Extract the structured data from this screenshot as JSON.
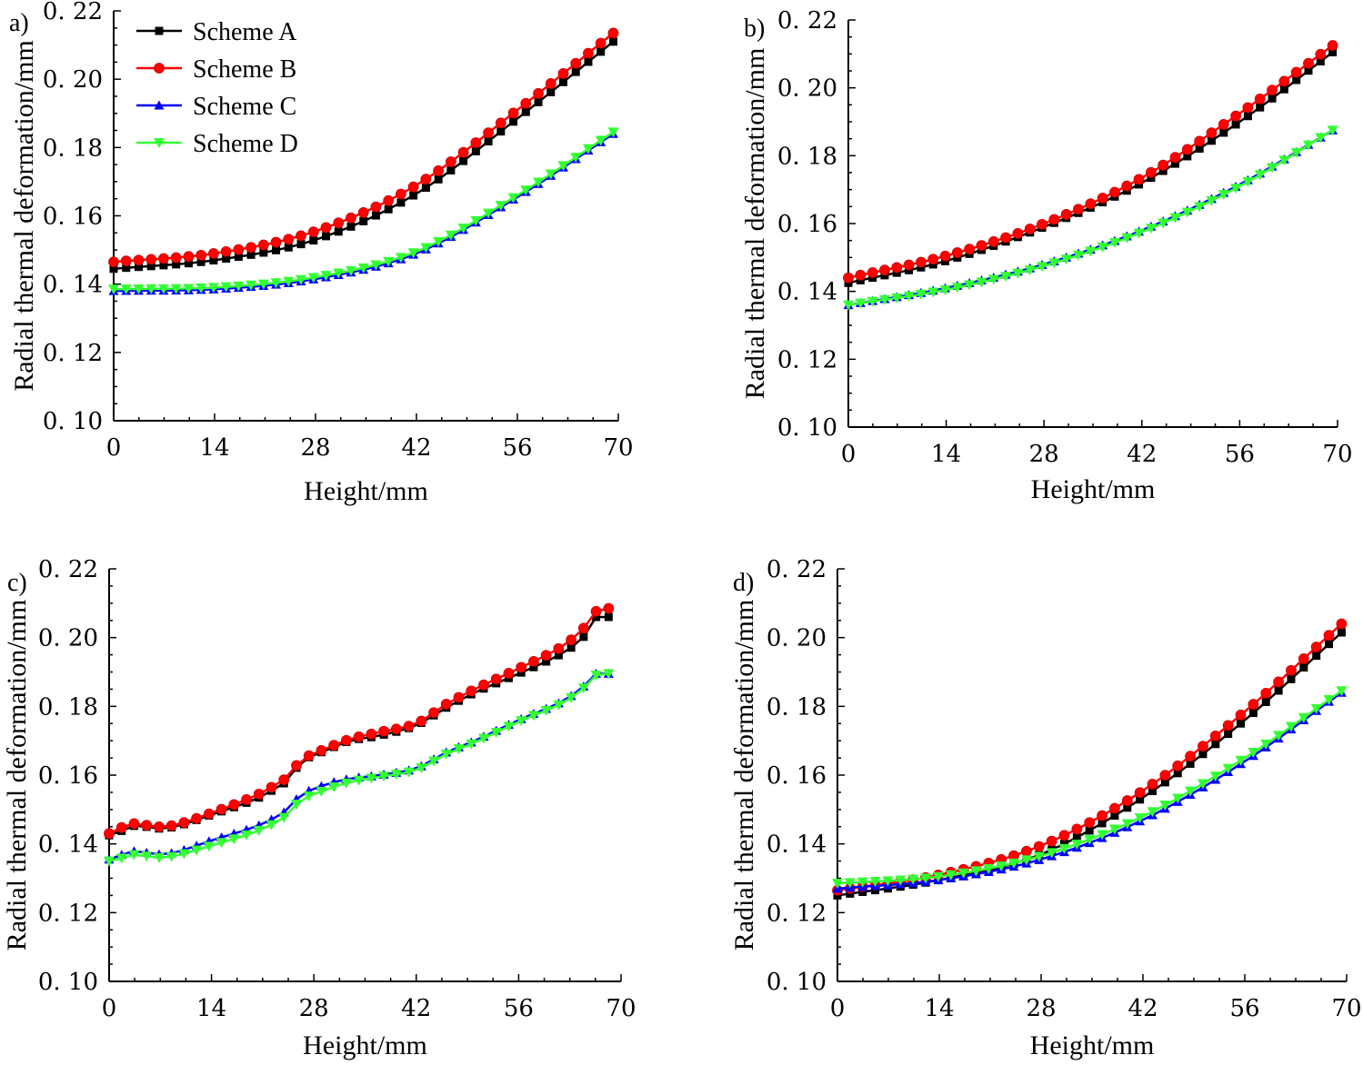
{
  "chart_data": [
    {
      "panel_label": "a)",
      "type": "line",
      "xlabel": "Height/mm",
      "ylabel": "Radial thermal deformation/mm",
      "xlim": [
        0,
        70
      ],
      "ylim": [
        0.1,
        0.22
      ],
      "x_ticks": [
        0,
        14,
        28,
        42,
        56,
        70
      ],
      "x_tick_labels": [
        "0",
        "14",
        "28",
        "42",
        "56",
        "70"
      ],
      "y_ticks": [
        0.1,
        0.12,
        0.14,
        0.16,
        0.18,
        0.2,
        0.22
      ],
      "y_tick_labels": [
        "0. 10",
        "0. 12",
        "0. 14",
        "0. 16",
        "0. 18",
        "0. 20",
        "0. 22"
      ],
      "x_max": 69.3,
      "n_points": 41,
      "series": [
        {
          "name": "Scheme A",
          "color": "#000000",
          "marker": "square",
          "anchors": [
            [
              0,
              0.1445
            ],
            [
              14,
              0.147
            ],
            [
              28,
              0.153
            ],
            [
              42,
              0.1665
            ],
            [
              56,
              0.1885
            ],
            [
              69.3,
              0.211
            ]
          ]
        },
        {
          "name": "Scheme B",
          "color": "#ff0000",
          "marker": "circle",
          "anchors": [
            [
              0,
              0.1465
            ],
            [
              14,
              0.149
            ],
            [
              28,
              0.1555
            ],
            [
              42,
              0.169
            ],
            [
              56,
              0.191
            ],
            [
              69.3,
              0.2135
            ]
          ]
        },
        {
          "name": "Scheme C",
          "color": "#0000ff",
          "marker": "triangle-up",
          "anchors": [
            [
              0,
              0.138
            ],
            [
              14,
              0.1385
            ],
            [
              28,
              0.1415
            ],
            [
              42,
              0.149
            ],
            [
              56,
              0.1655
            ],
            [
              69.3,
              0.184
            ]
          ]
        },
        {
          "name": "Scheme D",
          "color": "#33ff33",
          "marker": "triangle-down",
          "anchors": [
            [
              0,
              0.1385
            ],
            [
              14,
              0.139
            ],
            [
              28,
              0.142
            ],
            [
              42,
              0.1495
            ],
            [
              56,
              0.166
            ],
            [
              69.3,
              0.1845
            ]
          ]
        }
      ]
    },
    {
      "panel_label": "b)",
      "type": "line",
      "xlabel": "Height/mm",
      "ylabel": "Radial thermal deformation/mm",
      "xlim": [
        0,
        70
      ],
      "ylim": [
        0.1,
        0.22
      ],
      "x_ticks": [
        0,
        14,
        28,
        42,
        56,
        70
      ],
      "x_tick_labels": [
        "0",
        "14",
        "28",
        "42",
        "56",
        "70"
      ],
      "y_ticks": [
        0.1,
        0.12,
        0.14,
        0.16,
        0.18,
        0.2,
        0.22
      ],
      "y_tick_labels": [
        "0. 10",
        "0. 12",
        "0. 14",
        "0. 16",
        "0. 18",
        "0. 20",
        "0. 22"
      ],
      "x_max": 69.3,
      "n_points": 41,
      "series": [
        {
          "name": "Scheme A",
          "color": "#000000",
          "marker": "square",
          "anchors": [
            [
              0,
              0.1425
            ],
            [
              14,
              0.149
            ],
            [
              28,
              0.159
            ],
            [
              42,
              0.172
            ],
            [
              56,
              0.19
            ],
            [
              69.3,
              0.2105
            ]
          ]
        },
        {
          "name": "Scheme B",
          "color": "#ff0000",
          "marker": "circle",
          "anchors": [
            [
              0,
              0.144
            ],
            [
              14,
              0.1505
            ],
            [
              28,
              0.16
            ],
            [
              42,
              0.1735
            ],
            [
              56,
              0.1925
            ],
            [
              69.3,
              0.2125
            ]
          ]
        },
        {
          "name": "Scheme C",
          "color": "#0000ff",
          "marker": "triangle-up",
          "anchors": [
            [
              0,
              0.136
            ],
            [
              14,
              0.141
            ],
            [
              28,
              0.148
            ],
            [
              42,
              0.158
            ],
            [
              56,
              0.1715
            ],
            [
              69.3,
              0.1875
            ]
          ]
        },
        {
          "name": "Scheme D",
          "color": "#33ff33",
          "marker": "triangle-down",
          "anchors": [
            [
              0,
              0.136
            ],
            [
              14,
              0.1405
            ],
            [
              28,
              0.1475
            ],
            [
              42,
              0.1575
            ],
            [
              56,
              0.171
            ],
            [
              69.3,
              0.1875
            ]
          ]
        }
      ]
    },
    {
      "panel_label": "c)",
      "type": "line",
      "xlabel": "Height/mm",
      "ylabel": "Radial thermal deformation/mm",
      "xlim": [
        0,
        70
      ],
      "ylim": [
        0.1,
        0.22
      ],
      "x_ticks": [
        0,
        14,
        28,
        42,
        56,
        70
      ],
      "x_tick_labels": [
        "0",
        "14",
        "28",
        "42",
        "56",
        "70"
      ],
      "y_ticks": [
        0.1,
        0.12,
        0.14,
        0.16,
        0.18,
        0.2,
        0.22
      ],
      "y_tick_labels": [
        "0. 10",
        "0. 12",
        "0. 14",
        "0. 16",
        "0. 18",
        "0. 20",
        "0. 22"
      ],
      "x_max": 68.3,
      "n_points": 41,
      "series": [
        {
          "name": "Scheme A",
          "color": "#000000",
          "marker": "square",
          "anchors": [
            [
              0,
              0.1425
            ],
            [
              2,
              0.144
            ],
            [
              4,
              0.1455
            ],
            [
              6,
              0.1445
            ],
            [
              9,
              0.145
            ],
            [
              14,
              0.1485
            ],
            [
              20,
              0.153
            ],
            [
              23,
              0.1565
            ],
            [
              25,
              0.1595
            ],
            [
              26,
              0.1635
            ],
            [
              30,
              0.1675
            ],
            [
              33,
              0.17
            ],
            [
              37,
              0.1715
            ],
            [
              42,
              0.1745
            ],
            [
              46,
              0.1795
            ],
            [
              50,
              0.184
            ],
            [
              56,
              0.1895
            ],
            [
              62,
              0.1955
            ],
            [
              65,
              0.2005
            ],
            [
              66.5,
              0.206
            ],
            [
              68.3,
              0.206
            ]
          ]
        },
        {
          "name": "Scheme B",
          "color": "#ff0000",
          "marker": "circle",
          "anchors": [
            [
              0,
              0.143
            ],
            [
              2,
              0.145
            ],
            [
              4,
              0.146
            ],
            [
              6,
              0.145
            ],
            [
              9,
              0.1455
            ],
            [
              14,
              0.149
            ],
            [
              20,
              0.154
            ],
            [
              23,
              0.1575
            ],
            [
              25,
              0.1605
            ],
            [
              26,
              0.164
            ],
            [
              30,
              0.168
            ],
            [
              33,
              0.1705
            ],
            [
              37,
              0.1725
            ],
            [
              42,
              0.175
            ],
            [
              46,
              0.1805
            ],
            [
              50,
              0.185
            ],
            [
              56,
              0.191
            ],
            [
              62,
              0.1975
            ],
            [
              65,
              0.203
            ],
            [
              66.5,
              0.2075
            ],
            [
              68.3,
              0.2085
            ]
          ]
        },
        {
          "name": "Scheme C",
          "color": "#0000ff",
          "marker": "triangle-up",
          "anchors": [
            [
              0,
              0.1355
            ],
            [
              2,
              0.137
            ],
            [
              4,
              0.138
            ],
            [
              6,
              0.137
            ],
            [
              9,
              0.1375
            ],
            [
              14,
              0.141
            ],
            [
              20,
              0.145
            ],
            [
              23,
              0.148
            ],
            [
              25,
              0.151
            ],
            [
              26,
              0.154
            ],
            [
              30,
              0.1575
            ],
            [
              33,
              0.159
            ],
            [
              37,
              0.16
            ],
            [
              42,
              0.162
            ],
            [
              46,
              0.1665
            ],
            [
              50,
              0.17
            ],
            [
              56,
              0.176
            ],
            [
              62,
              0.1815
            ],
            [
              65,
              0.186
            ],
            [
              66.5,
              0.1895
            ],
            [
              68.3,
              0.1895
            ]
          ]
        },
        {
          "name": "Scheme D",
          "color": "#33ff33",
          "marker": "triangle-down",
          "anchors": [
            [
              0,
              0.135
            ],
            [
              2,
              0.136
            ],
            [
              4,
              0.137
            ],
            [
              6,
              0.136
            ],
            [
              9,
              0.1365
            ],
            [
              14,
              0.1395
            ],
            [
              20,
              0.1435
            ],
            [
              23,
              0.1465
            ],
            [
              25,
              0.1495
            ],
            [
              26,
              0.1525
            ],
            [
              30,
              0.156
            ],
            [
              33,
              0.158
            ],
            [
              37,
              0.1595
            ],
            [
              42,
              0.1615
            ],
            [
              46,
              0.166
            ],
            [
              50,
              0.1695
            ],
            [
              56,
              0.1755
            ],
            [
              62,
              0.181
            ],
            [
              65,
              0.1855
            ],
            [
              66.5,
              0.189
            ],
            [
              68.3,
              0.1895
            ]
          ]
        }
      ]
    },
    {
      "panel_label": "d)",
      "type": "line",
      "xlabel": "Height/mm",
      "ylabel": "Radial thermal deformation/mm",
      "xlim": [
        0,
        70
      ],
      "ylim": [
        0.1,
        0.22
      ],
      "x_ticks": [
        0,
        14,
        28,
        42,
        56,
        70
      ],
      "x_tick_labels": [
        "0",
        "14",
        "28",
        "42",
        "56",
        "70"
      ],
      "y_ticks": [
        0.1,
        0.12,
        0.14,
        0.16,
        0.18,
        0.2,
        0.22
      ],
      "y_tick_labels": [
        "0. 10",
        "0. 12",
        "0. 14",
        "0. 16",
        "0. 18",
        "0. 20",
        "0. 22"
      ],
      "x_max": 69.3,
      "n_points": 41,
      "series": [
        {
          "name": "Scheme A",
          "color": "#000000",
          "marker": "square",
          "anchors": [
            [
              0,
              0.125
            ],
            [
              14,
              0.1295
            ],
            [
              28,
              0.137
            ],
            [
              42,
              0.1535
            ],
            [
              56,
              0.176
            ],
            [
              69.3,
              0.2015
            ]
          ]
        },
        {
          "name": "Scheme B",
          "color": "#ff0000",
          "marker": "circle",
          "anchors": [
            [
              0,
              0.1265
            ],
            [
              14,
              0.131
            ],
            [
              28,
              0.1395
            ],
            [
              42,
              0.1555
            ],
            [
              56,
              0.1785
            ],
            [
              69.3,
              0.204
            ]
          ]
        },
        {
          "name": "Scheme C",
          "color": "#0000ff",
          "marker": "triangle-up",
          "anchors": [
            [
              0,
              0.127
            ],
            [
              14,
              0.1295
            ],
            [
              28,
              0.1355
            ],
            [
              42,
              0.147
            ],
            [
              56,
              0.164
            ],
            [
              69.3,
              0.184
            ]
          ]
        },
        {
          "name": "Scheme D",
          "color": "#33ff33",
          "marker": "triangle-down",
          "anchors": [
            [
              0,
              0.1285
            ],
            [
              14,
              0.1305
            ],
            [
              28,
              0.1365
            ],
            [
              42,
              0.148
            ],
            [
              56,
              0.165
            ],
            [
              69.3,
              0.1845
            ]
          ]
        }
      ]
    }
  ],
  "legend": {
    "location": "top-left of panel a",
    "entries": [
      {
        "label": "Scheme A",
        "color": "#000000",
        "marker": "square"
      },
      {
        "label": "Scheme B",
        "color": "#ff0000",
        "marker": "circle"
      },
      {
        "label": "Scheme C",
        "color": "#0000ff",
        "marker": "triangle-up"
      },
      {
        "label": "Scheme D",
        "color": "#33ff33",
        "marker": "triangle-down"
      }
    ]
  }
}
